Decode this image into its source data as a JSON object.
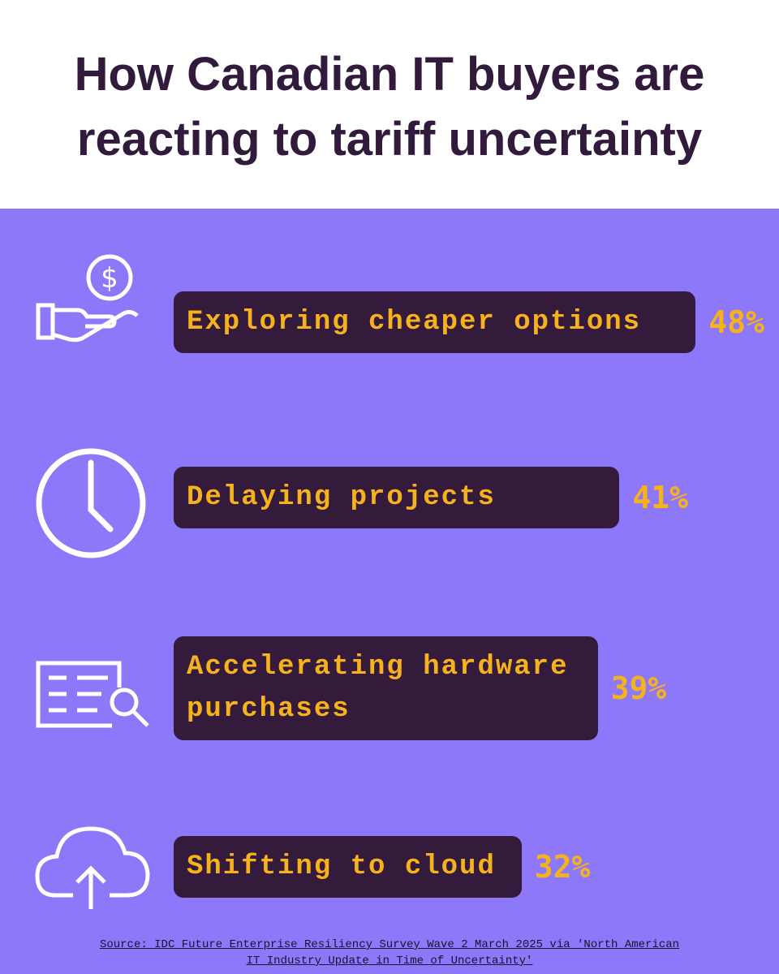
{
  "chart_data": {
    "type": "bar",
    "orientation": "horizontal",
    "title": "How Canadian IT buyers are reacting to tariff uncertainty",
    "categories": [
      "Exploring cheaper options",
      "Delaying projects",
      "Accelerating hardware purchases",
      "Shifting to cloud"
    ],
    "values": [
      48,
      41,
      39,
      32
    ],
    "value_labels": [
      "48%",
      "41%",
      "39%",
      "32%"
    ],
    "color": "#351b3b",
    "source": "Source: IDC Future Enterprise Resiliency Survey Wave 2 March 2025 via 'North American IT Industry Update in Time of Uncertainty'"
  }
}
